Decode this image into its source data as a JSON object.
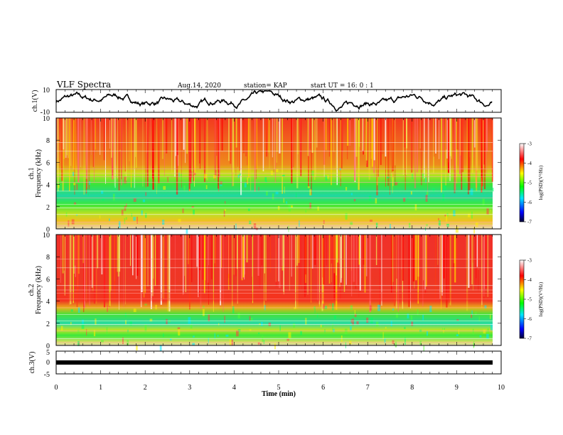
{
  "header": {
    "title": "VLF Spectra",
    "date": "Aug.14, 2020",
    "station": "station= KAP",
    "start": "start  UT =  16: 0  : 1"
  },
  "chart_data": [
    {
      "type": "line",
      "name": "ch1-waveform",
      "ylabel": "ch.1(V)",
      "ylim": [
        -10,
        10
      ],
      "yticks": [
        "10",
        "-10"
      ],
      "xlim": [
        0,
        10
      ],
      "x_extent": 9.8
    },
    {
      "type": "heatmap",
      "name": "ch1-spectrogram",
      "ylabel": "ch.1\nFrequency (kHz)",
      "ylim": [
        0,
        10
      ],
      "yticks": [
        "0",
        "2",
        "4",
        "6",
        "8",
        "10"
      ],
      "xlim": [
        0,
        10
      ],
      "colorbar": {
        "label": "log(PSD)(V²/Hz)",
        "range": [
          -7,
          -3
        ],
        "ticks": [
          "-3",
          "-4",
          "-5",
          "-6",
          "-7"
        ]
      }
    },
    {
      "type": "heatmap",
      "name": "ch2-spectrogram",
      "ylabel": "ch.2\nFrequency (kHz)",
      "ylim": [
        0,
        10
      ],
      "yticks": [
        "0",
        "2",
        "4",
        "6",
        "8",
        "10"
      ],
      "xlim": [
        0,
        10
      ],
      "colorbar": {
        "label": "log(PSD)(V²/Hz)",
        "range": [
          -7,
          -3
        ],
        "ticks": [
          "-3",
          "-4",
          "-5",
          "-6",
          "-7"
        ]
      }
    },
    {
      "type": "line",
      "name": "ch3-waveform",
      "ylabel": "ch.3(V)",
      "ylim": [
        -5,
        5
      ],
      "yticks": [
        "5",
        "0",
        "-5"
      ],
      "xlim": [
        0,
        10
      ],
      "xlabel": "Time (min)",
      "xticks": [
        "0",
        "1",
        "2",
        "3",
        "4",
        "5",
        "6",
        "7",
        "8",
        "9",
        "10"
      ]
    }
  ],
  "colors": {
    "line": "#000000",
    "colormap": [
      "#000066",
      "#0000ff",
      "#00ccff",
      "#00ff00",
      "#ffff00",
      "#ff0000",
      "#ffffff"
    ]
  }
}
